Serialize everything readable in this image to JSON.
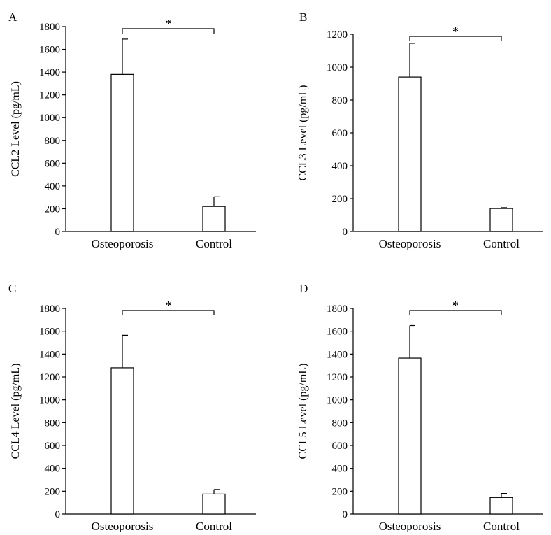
{
  "chart_data": [
    {
      "type": "bar",
      "panel_label": "A",
      "categories": [
        "Osteoporosis",
        "Control"
      ],
      "values": [
        1380,
        220
      ],
      "error": [
        310,
        85
      ],
      "ylabel": "CCL2 Level (pg/mL)",
      "xlabel": "",
      "ylim": [
        0,
        1800
      ],
      "yticks": [
        0,
        200,
        400,
        600,
        800,
        1000,
        1200,
        1400,
        1600,
        1800
      ],
      "significance": "*",
      "grid": false
    },
    {
      "type": "bar",
      "panel_label": "B",
      "categories": [
        "Osteoporosis",
        "Control"
      ],
      "values": [
        940,
        140
      ],
      "error": [
        205,
        5
      ],
      "ylabel": "CCL3 Level (pg/mL)",
      "xlabel": "",
      "ylim": [
        0,
        1200
      ],
      "yticks": [
        0,
        200,
        400,
        600,
        800,
        1000,
        1200
      ],
      "significance": "*",
      "grid": false
    },
    {
      "type": "bar",
      "panel_label": "C",
      "categories": [
        "Osteoporosis",
        "Control"
      ],
      "values": [
        1280,
        175
      ],
      "error": [
        285,
        40
      ],
      "ylabel": "CCL4 Level (pg/mL)",
      "xlabel": "",
      "ylim": [
        0,
        1800
      ],
      "yticks": [
        0,
        200,
        400,
        600,
        800,
        1000,
        1200,
        1400,
        1600,
        1800
      ],
      "significance": "*",
      "grid": false
    },
    {
      "type": "bar",
      "panel_label": "D",
      "categories": [
        "Osteoporosis",
        "Control"
      ],
      "values": [
        1365,
        145
      ],
      "error": [
        285,
        35
      ],
      "ylabel": "CCL5 Level (pg/mL)",
      "xlabel": "",
      "ylim": [
        0,
        1800
      ],
      "yticks": [
        0,
        200,
        400,
        600,
        800,
        1000,
        1200,
        1400,
        1600,
        1800
      ],
      "significance": "*",
      "grid": false
    }
  ]
}
